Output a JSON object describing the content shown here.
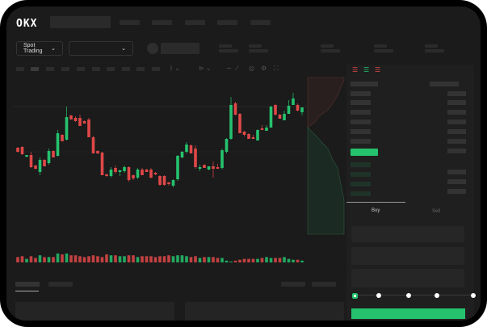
{
  "header": {
    "logo": "OKX",
    "nav_items": [
      "",
      "",
      "",
      "",
      ""
    ]
  },
  "toolbar": {
    "market_select": "Spot Trading",
    "pair_select": ""
  },
  "orderbook": {
    "view_icons": [
      "both-sides-icon",
      "bids-only-icon",
      "asks-only-icon"
    ]
  },
  "trade": {
    "tabs": [
      "Buy",
      "Sell"
    ],
    "active_tab": "Buy",
    "slider_percent": 0,
    "slider_marks": [
      0,
      25,
      50,
      75,
      100
    ]
  },
  "colors": {
    "up": "#25c26e",
    "down": "#e04848",
    "background": "#1b1b1b"
  },
  "chart_data": {
    "type": "candlestick",
    "ohlc": [
      [
        67,
        68,
        61,
        62
      ],
      [
        68,
        69,
        58,
        59
      ],
      [
        56,
        58,
        55,
        58
      ],
      [
        58,
        62,
        42,
        43
      ],
      [
        45,
        46,
        40,
        41
      ],
      [
        37,
        55,
        33,
        52
      ],
      [
        52,
        53,
        44,
        44
      ],
      [
        48,
        66,
        46,
        63
      ],
      [
        63,
        64,
        55,
        55
      ],
      [
        57,
        89,
        56,
        85
      ],
      [
        83,
        84,
        75,
        75
      ],
      [
        77,
        118,
        76,
        105
      ],
      [
        107,
        108,
        102,
        102
      ],
      [
        104,
        106,
        99,
        100
      ],
      [
        104,
        108,
        94,
        94
      ],
      [
        100,
        101,
        97,
        97
      ],
      [
        102,
        104,
        80,
        80
      ],
      [
        80,
        82,
        60,
        60
      ],
      [
        63,
        64,
        59,
        60
      ],
      [
        61,
        62,
        33,
        33
      ],
      [
        34,
        35,
        31,
        32
      ],
      [
        32,
        43,
        30,
        40
      ],
      [
        42,
        45,
        35,
        37
      ],
      [
        37,
        40,
        32,
        39
      ],
      [
        38,
        45,
        36,
        43
      ],
      [
        43,
        44,
        25,
        27
      ],
      [
        33,
        34,
        27,
        29
      ],
      [
        30,
        42,
        28,
        40
      ],
      [
        40,
        42,
        33,
        33
      ],
      [
        40,
        41,
        37,
        37
      ],
      [
        40,
        42,
        29,
        30
      ],
      [
        36,
        37,
        33,
        34
      ],
      [
        32,
        33,
        20,
        21
      ],
      [
        32,
        33,
        20,
        21
      ],
      [
        24,
        25,
        20,
        22
      ],
      [
        20,
        28,
        18,
        27
      ],
      [
        28,
        58,
        26,
        57
      ],
      [
        55,
        63,
        54,
        62
      ],
      [
        62,
        74,
        60,
        71
      ],
      [
        70,
        71,
        60,
        60
      ],
      [
        66,
        70,
        41,
        43
      ],
      [
        41,
        46,
        38,
        43
      ],
      [
        46,
        46,
        42,
        42
      ],
      [
        40,
        44,
        39,
        44
      ],
      [
        44,
        50,
        30,
        41
      ],
      [
        43,
        47,
        41,
        41
      ],
      [
        42,
        66,
        40,
        64
      ],
      [
        62,
        79,
        60,
        78
      ],
      [
        78,
        130,
        77,
        120
      ],
      [
        122,
        124,
        107,
        108
      ],
      [
        109,
        110,
        85,
        85
      ],
      [
        87,
        88,
        81,
        83
      ],
      [
        84,
        85,
        78,
        78
      ],
      [
        80,
        83,
        78,
        78
      ],
      [
        76,
        90,
        76,
        89
      ],
      [
        91,
        95,
        89,
        89
      ],
      [
        88,
        95,
        88,
        92
      ],
      [
        92,
        119,
        92,
        118
      ],
      [
        120,
        121,
        107,
        108
      ],
      [
        108,
        109,
        103,
        103
      ],
      [
        101,
        113,
        101,
        109
      ],
      [
        109,
        126,
        109,
        119
      ],
      [
        120,
        135,
        120,
        128
      ],
      [
        120,
        122,
        112,
        113
      ],
      [
        111,
        117,
        107,
        117
      ]
    ],
    "volume": [
      6,
      7,
      4,
      7,
      5,
      8,
      6,
      6,
      6,
      10,
      9,
      10,
      8,
      8,
      7,
      6,
      7,
      8,
      7,
      6,
      9,
      8,
      8,
      7,
      7,
      8,
      8,
      6,
      7,
      7,
      7,
      6,
      7,
      7,
      8,
      7,
      8,
      8,
      7,
      6,
      7,
      5,
      6,
      6,
      6,
      5,
      5,
      2,
      1,
      2,
      3,
      4,
      4,
      4,
      4,
      5,
      6,
      5,
      5,
      5,
      6,
      4,
      3,
      3,
      2
    ],
    "ylim": [
      10,
      140
    ]
  }
}
